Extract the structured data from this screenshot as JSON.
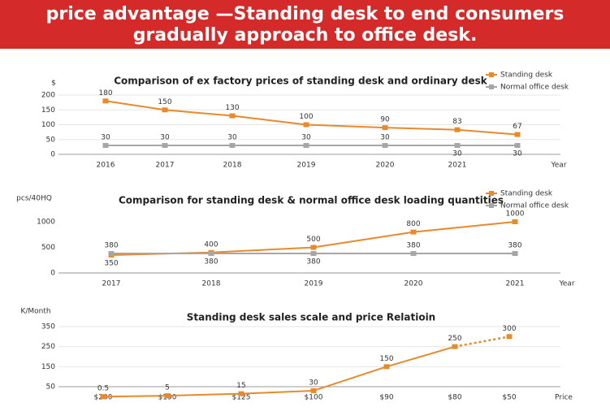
{
  "header": {
    "lines": [
      "price advantage —Standing desk to end consumers",
      "gradually approach to office desk."
    ]
  },
  "chart_data": [
    {
      "type": "line",
      "title": "Comparison of ex factory prices of standing desk  and ordinary desk",
      "y_label": "$",
      "x_label": "Year",
      "categories": [
        "2016",
        "2017",
        "2018",
        "2019",
        "2020",
        "2021",
        null
      ],
      "series": [
        {
          "name": "Standing desk",
          "color": "#e8892b",
          "values": [
            180,
            150,
            130,
            100,
            90,
            83,
            67
          ]
        },
        {
          "name": "Normal office desk",
          "color": "#a6a6a6",
          "values": [
            30,
            30,
            30,
            30,
            30,
            30,
            30
          ]
        }
      ],
      "ylim": [
        0,
        200
      ],
      "yticks": [
        0,
        50,
        100,
        150,
        200
      ],
      "grid": true,
      "legend": "top-right"
    },
    {
      "type": "line",
      "title": "Comparison for standing desk & normal office desk loading quantities",
      "y_label": "pcs/40HQ",
      "x_label": "Year",
      "categories": [
        "2017",
        "2018",
        "2019",
        "2020",
        "2021"
      ],
      "series": [
        {
          "name": "Standing desk",
          "color": "#e8892b",
          "values": [
            350,
            400,
            500,
            800,
            1000
          ]
        },
        {
          "name": "Normal office desk",
          "color": "#a6a6a6",
          "values": [
            380,
            380,
            380,
            380,
            380
          ]
        }
      ],
      "ylim": [
        0,
        1100
      ],
      "yticks": [
        0,
        500,
        1000
      ],
      "grid": false,
      "legend": "top-right"
    },
    {
      "type": "line",
      "title": "Standing desk sales scale and price Relatioin",
      "y_label": "K/Month",
      "x_label": "Price",
      "categories": [
        "$200",
        "$150",
        "$125",
        "$100",
        "$90",
        "$80",
        "$50"
      ],
      "series": [
        {
          "color": "#e8892b",
          "values": [
            0.5,
            5,
            15,
            30,
            150,
            250,
            300
          ]
        }
      ],
      "ylim": [
        50,
        350
      ],
      "yticks": [
        50,
        150,
        250,
        350
      ],
      "grid": true,
      "dashed_last_segment": true
    }
  ]
}
